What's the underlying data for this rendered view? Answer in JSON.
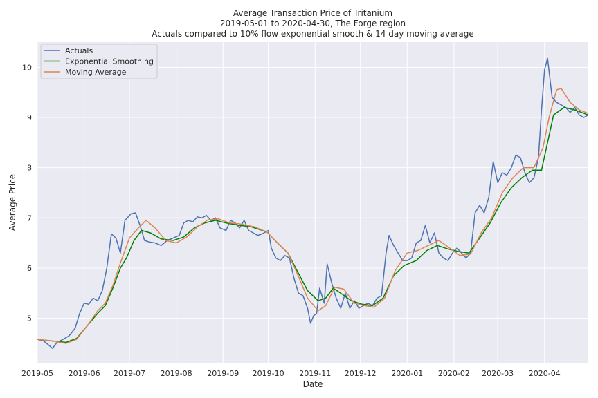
{
  "chart_data": {
    "type": "line",
    "title": "Average Transaction Price of Tritanium",
    "subtitle1": "2019-05-01 to 2020-04-30, The Forge region",
    "subtitle2": "Actuals compared to 10% flow exponential smooth & 14 day moving average",
    "xlabel": "Date",
    "ylabel": "Average Price",
    "xlim": [
      "2019-05-01",
      "2020-04-30"
    ],
    "ylim": [
      4.1,
      10.5
    ],
    "x_ticks": [
      {
        "date": "2019-05-01",
        "label": "2019-05"
      },
      {
        "date": "2019-06-01",
        "label": "2019-06"
      },
      {
        "date": "2019-07-01",
        "label": "2019-07"
      },
      {
        "date": "2019-08-01",
        "label": "2019-08"
      },
      {
        "date": "2019-09-01",
        "label": "2019-09"
      },
      {
        "date": "2019-10-01",
        "label": "2019-10"
      },
      {
        "date": "2019-11-01",
        "label": "2019-11"
      },
      {
        "date": "2019-12-01",
        "label": "2019-12"
      },
      {
        "date": "2020-01-01",
        "label": "2020-01"
      },
      {
        "date": "2020-02-01",
        "label": "2020-02"
      },
      {
        "date": "2020-03-01",
        "label": "2020-03"
      },
      {
        "date": "2020-04-01",
        "label": "2020-04"
      }
    ],
    "y_ticks": [
      5,
      6,
      7,
      8,
      9,
      10
    ],
    "grid": true,
    "legend_position": "top-left",
    "colors": {
      "background": "#eaeaf2",
      "grid": "#ffffff"
    },
    "series": [
      {
        "name": "Actuals",
        "color": "#4c72b0",
        "points": [
          [
            "2019-05-01",
            4.58
          ],
          [
            "2019-05-05",
            4.55
          ],
          [
            "2019-05-08",
            4.48
          ],
          [
            "2019-05-11",
            4.4
          ],
          [
            "2019-05-14",
            4.52
          ],
          [
            "2019-05-18",
            4.58
          ],
          [
            "2019-05-22",
            4.65
          ],
          [
            "2019-05-26",
            4.8
          ],
          [
            "2019-05-29",
            5.1
          ],
          [
            "2019-06-01",
            5.3
          ],
          [
            "2019-06-04",
            5.28
          ],
          [
            "2019-06-07",
            5.4
          ],
          [
            "2019-06-10",
            5.35
          ],
          [
            "2019-06-13",
            5.55
          ],
          [
            "2019-06-16",
            6.0
          ],
          [
            "2019-06-19",
            6.68
          ],
          [
            "2019-06-22",
            6.6
          ],
          [
            "2019-06-25",
            6.3
          ],
          [
            "2019-06-28",
            6.95
          ],
          [
            "2019-07-02",
            7.08
          ],
          [
            "2019-07-05",
            7.1
          ],
          [
            "2019-07-08",
            6.85
          ],
          [
            "2019-07-11",
            6.55
          ],
          [
            "2019-07-14",
            6.52
          ],
          [
            "2019-07-18",
            6.5
          ],
          [
            "2019-07-22",
            6.45
          ],
          [
            "2019-07-26",
            6.55
          ],
          [
            "2019-07-30",
            6.6
          ],
          [
            "2019-08-03",
            6.65
          ],
          [
            "2019-08-06",
            6.9
          ],
          [
            "2019-08-09",
            6.95
          ],
          [
            "2019-08-12",
            6.92
          ],
          [
            "2019-08-15",
            7.02
          ],
          [
            "2019-08-18",
            7.0
          ],
          [
            "2019-08-21",
            7.05
          ],
          [
            "2019-08-24",
            6.95
          ],
          [
            "2019-08-27",
            7.0
          ],
          [
            "2019-08-30",
            6.8
          ],
          [
            "2019-09-03",
            6.75
          ],
          [
            "2019-09-06",
            6.95
          ],
          [
            "2019-09-09",
            6.9
          ],
          [
            "2019-09-12",
            6.8
          ],
          [
            "2019-09-15",
            6.95
          ],
          [
            "2019-09-18",
            6.75
          ],
          [
            "2019-09-21",
            6.7
          ],
          [
            "2019-09-24",
            6.65
          ],
          [
            "2019-09-27",
            6.68
          ],
          [
            "2019-10-01",
            6.75
          ],
          [
            "2019-10-03",
            6.4
          ],
          [
            "2019-10-06",
            6.2
          ],
          [
            "2019-10-09",
            6.15
          ],
          [
            "2019-10-12",
            6.25
          ],
          [
            "2019-10-15",
            6.2
          ],
          [
            "2019-10-18",
            5.8
          ],
          [
            "2019-10-21",
            5.5
          ],
          [
            "2019-10-24",
            5.45
          ],
          [
            "2019-10-27",
            5.2
          ],
          [
            "2019-10-29",
            4.9
          ],
          [
            "2019-10-31",
            5.05
          ],
          [
            "2019-11-02",
            5.1
          ],
          [
            "2019-11-04",
            5.6
          ],
          [
            "2019-11-07",
            5.3
          ],
          [
            "2019-11-09",
            6.08
          ],
          [
            "2019-11-12",
            5.7
          ],
          [
            "2019-11-15",
            5.4
          ],
          [
            "2019-11-18",
            5.2
          ],
          [
            "2019-11-21",
            5.5
          ],
          [
            "2019-11-24",
            5.2
          ],
          [
            "2019-11-27",
            5.35
          ],
          [
            "2019-11-30",
            5.2
          ],
          [
            "2019-12-03",
            5.25
          ],
          [
            "2019-12-06",
            5.3
          ],
          [
            "2019-12-09",
            5.25
          ],
          [
            "2019-12-12",
            5.4
          ],
          [
            "2019-12-15",
            5.45
          ],
          [
            "2019-12-18",
            6.3
          ],
          [
            "2019-12-20",
            6.65
          ],
          [
            "2019-12-23",
            6.45
          ],
          [
            "2019-12-26",
            6.3
          ],
          [
            "2019-12-29",
            6.15
          ],
          [
            "2020-01-01",
            6.15
          ],
          [
            "2020-01-04",
            6.2
          ],
          [
            "2020-01-07",
            6.5
          ],
          [
            "2020-01-10",
            6.55
          ],
          [
            "2020-01-13",
            6.85
          ],
          [
            "2020-01-16",
            6.5
          ],
          [
            "2020-01-19",
            6.7
          ],
          [
            "2020-01-22",
            6.3
          ],
          [
            "2020-01-25",
            6.2
          ],
          [
            "2020-01-28",
            6.15
          ],
          [
            "2020-01-31",
            6.3
          ],
          [
            "2020-02-03",
            6.4
          ],
          [
            "2020-02-06",
            6.3
          ],
          [
            "2020-02-09",
            6.2
          ],
          [
            "2020-02-12",
            6.3
          ],
          [
            "2020-02-15",
            7.1
          ],
          [
            "2020-02-18",
            7.25
          ],
          [
            "2020-02-21",
            7.1
          ],
          [
            "2020-02-24",
            7.4
          ],
          [
            "2020-02-27",
            8.12
          ],
          [
            "2020-03-01",
            7.7
          ],
          [
            "2020-03-04",
            7.9
          ],
          [
            "2020-03-07",
            7.85
          ],
          [
            "2020-03-10",
            8.0
          ],
          [
            "2020-03-13",
            8.25
          ],
          [
            "2020-03-16",
            8.2
          ],
          [
            "2020-03-19",
            7.9
          ],
          [
            "2020-03-22",
            7.7
          ],
          [
            "2020-03-25",
            7.8
          ],
          [
            "2020-03-28",
            8.2
          ],
          [
            "2020-03-30",
            9.15
          ],
          [
            "2020-04-01",
            9.95
          ],
          [
            "2020-04-03",
            10.18
          ],
          [
            "2020-04-06",
            9.4
          ],
          [
            "2020-04-09",
            9.3
          ],
          [
            "2020-04-12",
            9.25
          ],
          [
            "2020-04-15",
            9.2
          ],
          [
            "2020-04-18",
            9.1
          ],
          [
            "2020-04-21",
            9.2
          ],
          [
            "2020-04-24",
            9.05
          ],
          [
            "2020-04-27",
            9.0
          ],
          [
            "2020-04-30",
            9.05
          ]
        ]
      },
      {
        "name": "Exponential Smoothing",
        "color": "#008000",
        "points": [
          [
            "2019-05-01",
            4.58
          ],
          [
            "2019-05-10",
            4.55
          ],
          [
            "2019-05-20",
            4.52
          ],
          [
            "2019-05-27",
            4.6
          ],
          [
            "2019-06-03",
            4.85
          ],
          [
            "2019-06-10",
            5.1
          ],
          [
            "2019-06-15",
            5.25
          ],
          [
            "2019-06-20",
            5.6
          ],
          [
            "2019-06-25",
            6.0
          ],
          [
            "2019-06-29",
            6.2
          ],
          [
            "2019-07-04",
            6.55
          ],
          [
            "2019-07-09",
            6.75
          ],
          [
            "2019-07-15",
            6.7
          ],
          [
            "2019-07-22",
            6.58
          ],
          [
            "2019-07-30",
            6.55
          ],
          [
            "2019-08-06",
            6.62
          ],
          [
            "2019-08-13",
            6.8
          ],
          [
            "2019-08-20",
            6.9
          ],
          [
            "2019-08-27",
            6.95
          ],
          [
            "2019-09-03",
            6.9
          ],
          [
            "2019-09-10",
            6.86
          ],
          [
            "2019-09-20",
            6.82
          ],
          [
            "2019-09-30",
            6.72
          ],
          [
            "2019-10-07",
            6.5
          ],
          [
            "2019-10-14",
            6.3
          ],
          [
            "2019-10-20",
            5.95
          ],
          [
            "2019-10-27",
            5.55
          ],
          [
            "2019-11-03",
            5.35
          ],
          [
            "2019-11-08",
            5.4
          ],
          [
            "2019-11-13",
            5.6
          ],
          [
            "2019-11-18",
            5.5
          ],
          [
            "2019-11-25",
            5.35
          ],
          [
            "2019-12-02",
            5.28
          ],
          [
            "2019-12-09",
            5.25
          ],
          [
            "2019-12-16",
            5.4
          ],
          [
            "2019-12-23",
            5.85
          ],
          [
            "2019-12-30",
            6.05
          ],
          [
            "2020-01-07",
            6.15
          ],
          [
            "2020-01-14",
            6.35
          ],
          [
            "2020-01-21",
            6.45
          ],
          [
            "2020-01-28",
            6.38
          ],
          [
            "2020-02-04",
            6.33
          ],
          [
            "2020-02-11",
            6.3
          ],
          [
            "2020-02-18",
            6.6
          ],
          [
            "2020-02-25",
            6.9
          ],
          [
            "2020-03-03",
            7.3
          ],
          [
            "2020-03-10",
            7.6
          ],
          [
            "2020-03-17",
            7.8
          ],
          [
            "2020-03-24",
            7.95
          ],
          [
            "2020-03-30",
            7.95
          ],
          [
            "2020-04-03",
            8.5
          ],
          [
            "2020-04-07",
            9.05
          ],
          [
            "2020-04-14",
            9.2
          ],
          [
            "2020-04-21",
            9.15
          ],
          [
            "2020-04-30",
            9.05
          ]
        ]
      },
      {
        "name": "Moving Average",
        "color": "#dd8452",
        "points": [
          [
            "2019-05-01",
            4.58
          ],
          [
            "2019-05-10",
            4.55
          ],
          [
            "2019-05-20",
            4.5
          ],
          [
            "2019-05-27",
            4.58
          ],
          [
            "2019-06-03",
            4.85
          ],
          [
            "2019-06-10",
            5.15
          ],
          [
            "2019-06-15",
            5.3
          ],
          [
            "2019-06-20",
            5.65
          ],
          [
            "2019-06-25",
            6.1
          ],
          [
            "2019-07-01",
            6.6
          ],
          [
            "2019-07-07",
            6.8
          ],
          [
            "2019-07-12",
            6.95
          ],
          [
            "2019-07-18",
            6.8
          ],
          [
            "2019-07-25",
            6.55
          ],
          [
            "2019-08-01",
            6.5
          ],
          [
            "2019-08-08",
            6.62
          ],
          [
            "2019-08-15",
            6.82
          ],
          [
            "2019-08-22",
            6.96
          ],
          [
            "2019-08-29",
            6.98
          ],
          [
            "2019-09-05",
            6.9
          ],
          [
            "2019-09-12",
            6.88
          ],
          [
            "2019-09-22",
            6.82
          ],
          [
            "2019-09-30",
            6.72
          ],
          [
            "2019-10-07",
            6.5
          ],
          [
            "2019-10-14",
            6.3
          ],
          [
            "2019-10-20",
            5.9
          ],
          [
            "2019-10-27",
            5.4
          ],
          [
            "2019-11-03",
            5.15
          ],
          [
            "2019-11-08",
            5.25
          ],
          [
            "2019-11-14",
            5.62
          ],
          [
            "2019-11-20",
            5.58
          ],
          [
            "2019-11-27",
            5.3
          ],
          [
            "2019-12-04",
            5.25
          ],
          [
            "2019-12-10",
            5.22
          ],
          [
            "2019-12-17",
            5.4
          ],
          [
            "2019-12-24",
            5.95
          ],
          [
            "2020-01-01",
            6.3
          ],
          [
            "2020-01-08",
            6.35
          ],
          [
            "2020-01-15",
            6.45
          ],
          [
            "2020-01-22",
            6.55
          ],
          [
            "2020-01-29",
            6.4
          ],
          [
            "2020-02-05",
            6.25
          ],
          [
            "2020-02-12",
            6.28
          ],
          [
            "2020-02-19",
            6.7
          ],
          [
            "2020-02-26",
            7.0
          ],
          [
            "2020-03-04",
            7.5
          ],
          [
            "2020-03-11",
            7.8
          ],
          [
            "2020-03-18",
            8.0
          ],
          [
            "2020-03-25",
            8.0
          ],
          [
            "2020-03-31",
            8.4
          ],
          [
            "2020-04-04",
            9.0
          ],
          [
            "2020-04-09",
            9.55
          ],
          [
            "2020-04-12",
            9.58
          ],
          [
            "2020-04-18",
            9.3
          ],
          [
            "2020-04-24",
            9.15
          ],
          [
            "2020-04-30",
            9.08
          ]
        ]
      }
    ]
  }
}
